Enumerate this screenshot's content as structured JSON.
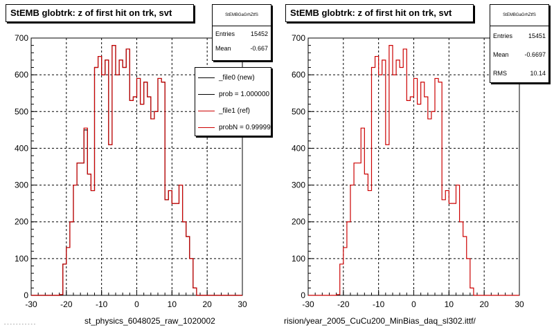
{
  "left": {
    "title": "StEMB globtrk: z of first hit on trk, svt",
    "filename": "st_physics_6048025_raw_1020002",
    "stats": {
      "header": "StEMBGaGrhZtfS",
      "rows": [
        {
          "label": "Entries",
          "value": "15452"
        },
        {
          "label": "Mean",
          "value": "-0.667"
        }
      ]
    },
    "legend": [
      {
        "label": "_file0 (new)",
        "color": "#000000"
      },
      {
        "label": "prob = 1.000000",
        "color": "#000000"
      },
      {
        "label": "_file1 (ref)",
        "color": "#cc0000"
      },
      {
        "label": "probN = 0.99999",
        "color": "#cc0000"
      }
    ]
  },
  "right": {
    "title": "StEMB globtrk: z of first hit on trk, svt",
    "filename": "rision/year_2005_CuCu200_MinBias_daq_sl302.ittf/",
    "stats": {
      "header": "StEMBGaGrhZtfS",
      "rows": [
        {
          "label": "Entries",
          "value": "15451"
        },
        {
          "label": "Mean",
          "value": "-0.6697"
        },
        {
          "label": "RMS",
          "value": "10.14"
        }
      ]
    }
  },
  "footer_text": "- - - - - - - - - - -",
  "chart_data": [
    {
      "type": "line",
      "title": "StEMB globtrk: z of first hit on trk, svt",
      "xlim": [
        -30,
        30
      ],
      "ylim": [
        0,
        700
      ],
      "x_ticks": [
        -30,
        -20,
        -10,
        0,
        10,
        20,
        30
      ],
      "y_ticks": [
        0,
        100,
        200,
        300,
        400,
        500,
        600,
        700
      ],
      "grid": true,
      "legend_position": "top-right",
      "bin_width": 1,
      "bin_start": -30,
      "series": [
        {
          "name": "_file0 (new)",
          "color": "#000000",
          "values": [
            0,
            0,
            0,
            0,
            0,
            0,
            0,
            0,
            2,
            85,
            130,
            200,
            300,
            360,
            360,
            450,
            330,
            285,
            620,
            650,
            600,
            640,
            410,
            680,
            600,
            640,
            620,
            670,
            530,
            540,
            590,
            520,
            580,
            540,
            480,
            500,
            590,
            580,
            260,
            285,
            250,
            250,
            300,
            200,
            160,
            100,
            20,
            0,
            0,
            0,
            0,
            0,
            0,
            0,
            0,
            0,
            0,
            0,
            0,
            0
          ]
        },
        {
          "name": "_file1 (ref)",
          "color": "#cc0000",
          "values": [
            0,
            0,
            0,
            0,
            0,
            0,
            0,
            0,
            2,
            85,
            130,
            200,
            300,
            360,
            360,
            455,
            330,
            285,
            620,
            650,
            600,
            640,
            410,
            680,
            600,
            640,
            620,
            670,
            530,
            540,
            590,
            520,
            580,
            540,
            480,
            500,
            590,
            580,
            260,
            285,
            250,
            250,
            300,
            200,
            160,
            100,
            20,
            0,
            0,
            0,
            0,
            0,
            0,
            0,
            0,
            0,
            0,
            0,
            0,
            0
          ]
        }
      ]
    },
    {
      "type": "line",
      "title": "StEMB globtrk: z of first hit on trk, svt",
      "xlim": [
        -30,
        30
      ],
      "ylim": [
        0,
        700
      ],
      "x_ticks": [
        -30,
        -20,
        -10,
        0,
        10,
        20,
        30
      ],
      "y_ticks": [
        0,
        100,
        200,
        300,
        400,
        500,
        600,
        700
      ],
      "grid": true,
      "bin_width": 1,
      "bin_start": -30,
      "series": [
        {
          "color": "#cc0000",
          "values": [
            0,
            0,
            0,
            0,
            0,
            0,
            0,
            0,
            2,
            85,
            130,
            200,
            300,
            360,
            360,
            455,
            330,
            285,
            620,
            650,
            600,
            640,
            410,
            680,
            600,
            640,
            620,
            670,
            530,
            540,
            590,
            520,
            580,
            540,
            480,
            500,
            590,
            580,
            260,
            285,
            250,
            250,
            300,
            200,
            160,
            100,
            20,
            0,
            0,
            0,
            0,
            0,
            0,
            0,
            0,
            0,
            0,
            0,
            0,
            0
          ]
        }
      ]
    }
  ]
}
